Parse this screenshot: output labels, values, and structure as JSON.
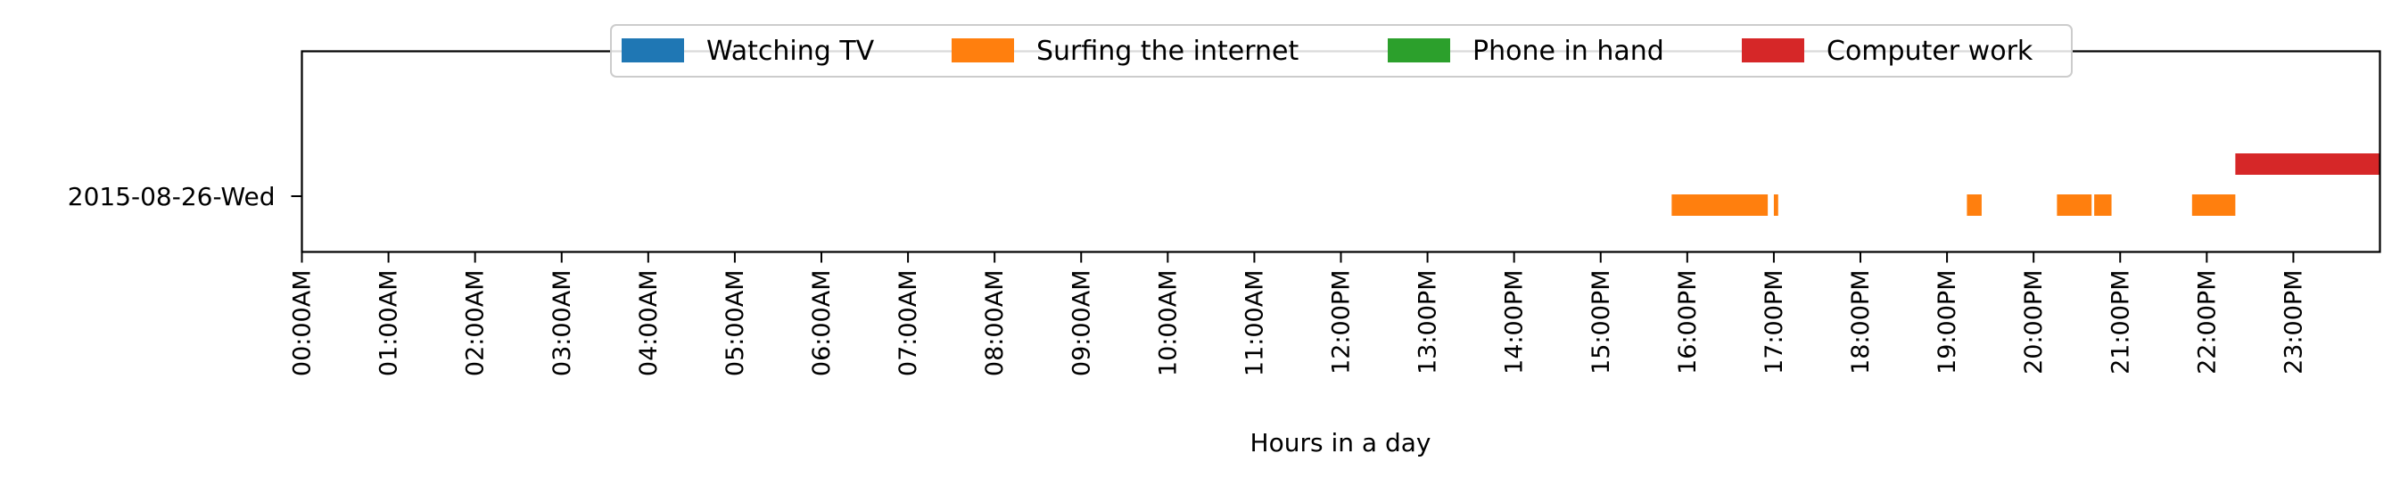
{
  "chart_data": {
    "type": "timeline",
    "title": "",
    "xlabel": "Hours in a day",
    "ylabel": "",
    "xlim": [
      0,
      24
    ],
    "x_unit": "hours",
    "grid": false,
    "legend_placement": "upper-center",
    "x_tick_labels": [
      "00:00AM",
      "01:00AM",
      "02:00AM",
      "03:00AM",
      "04:00AM",
      "05:00AM",
      "06:00AM",
      "07:00AM",
      "08:00AM",
      "09:00AM",
      "10:00AM",
      "11:00AM",
      "12:00PM",
      "13:00PM",
      "14:00PM",
      "15:00PM",
      "16:00PM",
      "17:00PM",
      "18:00PM",
      "19:00PM",
      "20:00PM",
      "21:00PM",
      "22:00PM",
      "23:00PM"
    ],
    "categories": [
      "2015-08-26-Wed"
    ],
    "series": [
      {
        "name": "Watching TV",
        "color": "#1f77b4",
        "intervals": []
      },
      {
        "name": "Surfing the internet",
        "color": "#ff7f0e",
        "intervals": [
          {
            "day": "2015-08-26-Wed",
            "start": 15.82,
            "end": 16.93
          },
          {
            "day": "2015-08-26-Wed",
            "start": 17.0,
            "end": 17.05
          },
          {
            "day": "2015-08-26-Wed",
            "start": 19.23,
            "end": 19.4
          },
          {
            "day": "2015-08-26-Wed",
            "start": 20.27,
            "end": 20.67
          },
          {
            "day": "2015-08-26-Wed",
            "start": 20.7,
            "end": 20.9
          },
          {
            "day": "2015-08-26-Wed",
            "start": 21.83,
            "end": 22.33
          }
        ]
      },
      {
        "name": "Phone in hand",
        "color": "#2ca02c",
        "intervals": []
      },
      {
        "name": "Computer work",
        "color": "#d62728",
        "intervals": [
          {
            "day": "2015-08-26-Wed",
            "start": 22.33,
            "end": 24.0
          }
        ]
      }
    ]
  }
}
